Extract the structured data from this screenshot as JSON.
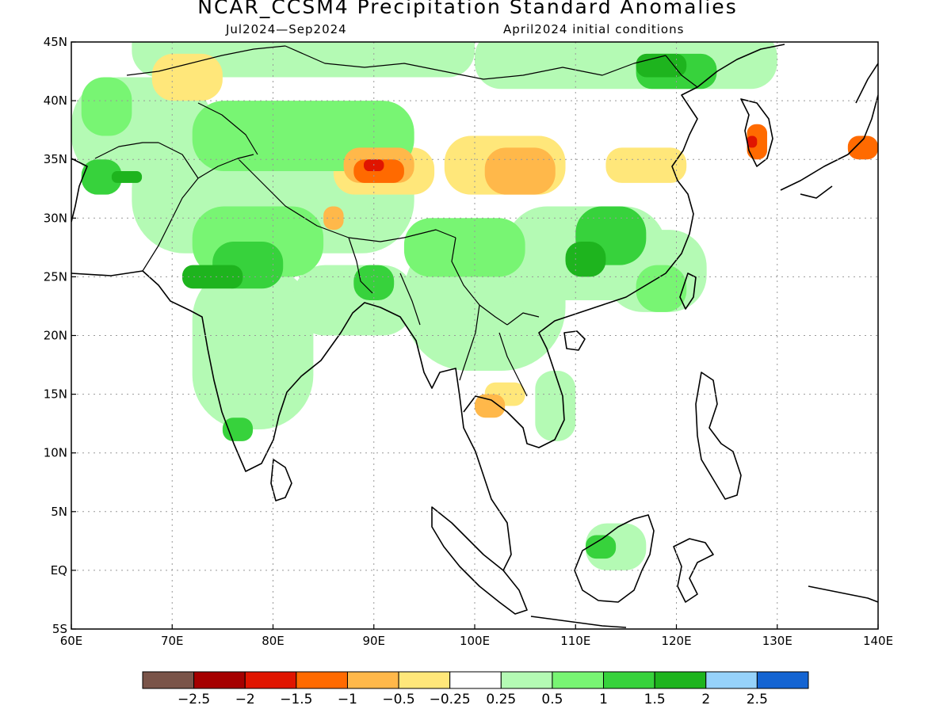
{
  "title": "NCAR_CCSM4 Precipitation Standard Anomalies",
  "subtitle_period": "Jul2024—Sep2024",
  "subtitle_ic": "April2024 initial conditions",
  "map": {
    "lon_range": [
      60,
      140
    ],
    "lat_range": [
      -5,
      45
    ],
    "lon_ticks": [
      {
        "value": 60,
        "label": "60E"
      },
      {
        "value": 70,
        "label": "70E"
      },
      {
        "value": 80,
        "label": "80E"
      },
      {
        "value": 90,
        "label": "90E"
      },
      {
        "value": 100,
        "label": "100E"
      },
      {
        "value": 110,
        "label": "110E"
      },
      {
        "value": 120,
        "label": "120E"
      },
      {
        "value": 130,
        "label": "130E"
      },
      {
        "value": 140,
        "label": "140E"
      }
    ],
    "lat_ticks": [
      {
        "value": 45,
        "label": "45N"
      },
      {
        "value": 40,
        "label": "40N"
      },
      {
        "value": 35,
        "label": "35N"
      },
      {
        "value": 30,
        "label": "30N"
      },
      {
        "value": 25,
        "label": "25N"
      },
      {
        "value": 20,
        "label": "20N"
      },
      {
        "value": 15,
        "label": "15N"
      },
      {
        "value": 10,
        "label": "10N"
      },
      {
        "value": 5,
        "label": "5N"
      },
      {
        "value": 0,
        "label": "EQ"
      },
      {
        "value": -5,
        "label": "5S"
      }
    ],
    "grid": true,
    "anomaly_patches": [
      {
        "lon": 66,
        "lat": 42,
        "w": 34,
        "h": 5,
        "level": 1
      },
      {
        "lon": 100,
        "lat": 41,
        "w": 30,
        "h": 5,
        "level": 1
      },
      {
        "lon": 60,
        "lat": 33,
        "w": 14,
        "h": 9,
        "level": 1
      },
      {
        "lon": 66,
        "lat": 27,
        "w": 28,
        "h": 10,
        "level": 1
      },
      {
        "lon": 72,
        "lat": 12,
        "w": 12,
        "h": 14,
        "level": 1
      },
      {
        "lon": 82,
        "lat": 20,
        "w": 12,
        "h": 6,
        "level": 1
      },
      {
        "lon": 93,
        "lat": 17,
        "w": 16,
        "h": 12,
        "level": 1
      },
      {
        "lon": 103,
        "lat": 23,
        "w": 16,
        "h": 8,
        "level": 1
      },
      {
        "lon": 113,
        "lat": 22,
        "w": 10,
        "h": 7,
        "level": 1
      },
      {
        "lon": 106,
        "lat": 11,
        "w": 4,
        "h": 6,
        "level": 1
      },
      {
        "lon": 111,
        "lat": 0,
        "w": 6,
        "h": 4,
        "level": 1
      },
      {
        "lon": 61,
        "lat": 37,
        "w": 5,
        "h": 5,
        "level": 2
      },
      {
        "lon": 72,
        "lat": 34,
        "w": 22,
        "h": 6,
        "level": 2
      },
      {
        "lon": 72,
        "lat": 25,
        "w": 13,
        "h": 6,
        "level": 2
      },
      {
        "lon": 93,
        "lat": 25,
        "w": 12,
        "h": 5,
        "level": 2
      },
      {
        "lon": 116,
        "lat": 22,
        "w": 5,
        "h": 4,
        "level": 2
      },
      {
        "lon": 61,
        "lat": 32,
        "w": 4,
        "h": 3,
        "level": 3
      },
      {
        "lon": 74,
        "lat": 24,
        "w": 7,
        "h": 4,
        "level": 3
      },
      {
        "lon": 88,
        "lat": 23,
        "w": 4,
        "h": 3,
        "level": 3
      },
      {
        "lon": 110,
        "lat": 26,
        "w": 7,
        "h": 5,
        "level": 3
      },
      {
        "lon": 116,
        "lat": 41,
        "w": 8,
        "h": 3,
        "level": 3
      },
      {
        "lon": 75,
        "lat": 11,
        "w": 3,
        "h": 2,
        "level": 3
      },
      {
        "lon": 111,
        "lat": 1,
        "w": 3,
        "h": 2,
        "level": 3
      },
      {
        "lon": 116,
        "lat": 42,
        "w": 5,
        "h": 2,
        "level": 4
      },
      {
        "lon": 109,
        "lat": 25,
        "w": 4,
        "h": 3,
        "level": 4
      },
      {
        "lon": 71,
        "lat": 24,
        "w": 6,
        "h": 2,
        "level": 4
      },
      {
        "lon": 64,
        "lat": 33,
        "w": 3,
        "h": 1,
        "level": 4
      },
      {
        "lon": 86,
        "lat": 32,
        "w": 10,
        "h": 4,
        "level": -1
      },
      {
        "lon": 97,
        "lat": 32,
        "w": 12,
        "h": 5,
        "level": -1
      },
      {
        "lon": 113,
        "lat": 33,
        "w": 8,
        "h": 3,
        "level": -1
      },
      {
        "lon": 68,
        "lat": 40,
        "w": 7,
        "h": 4,
        "level": -1
      },
      {
        "lon": 101,
        "lat": 14,
        "w": 4,
        "h": 2,
        "level": -1
      },
      {
        "lon": 87,
        "lat": 33,
        "w": 7,
        "h": 3,
        "level": -2
      },
      {
        "lon": 101,
        "lat": 32,
        "w": 7,
        "h": 4,
        "level": -2
      },
      {
        "lon": 85,
        "lat": 29,
        "w": 2,
        "h": 2,
        "level": -2
      },
      {
        "lon": 100,
        "lat": 13,
        "w": 3,
        "h": 2,
        "level": -2
      },
      {
        "lon": 88,
        "lat": 33,
        "w": 5,
        "h": 2,
        "level": -3
      },
      {
        "lon": 127,
        "lat": 35,
        "w": 2,
        "h": 3,
        "level": -3
      },
      {
        "lon": 137,
        "lat": 35,
        "w": 3,
        "h": 2,
        "level": -3
      },
      {
        "lon": 89,
        "lat": 34,
        "w": 2,
        "h": 1,
        "level": -4
      },
      {
        "lon": 127,
        "lat": 36,
        "w": 1,
        "h": 1,
        "level": -4
      }
    ]
  },
  "colorbar": {
    "colors": [
      "#7a5449",
      "#a50000",
      "#e01500",
      "#ff6a00",
      "#ffb84a",
      "#ffe77a",
      "#ffffff",
      "#b4fab4",
      "#78f573",
      "#37d23c",
      "#1eb41e",
      "#96d2fa",
      "#1464d2"
    ],
    "labels": [
      "−2.5",
      "−2",
      "−1.5",
      "−1",
      "−0.5",
      "−0.25",
      "0.25",
      "0.5",
      "1",
      "1.5",
      "2",
      "2.5"
    ]
  }
}
